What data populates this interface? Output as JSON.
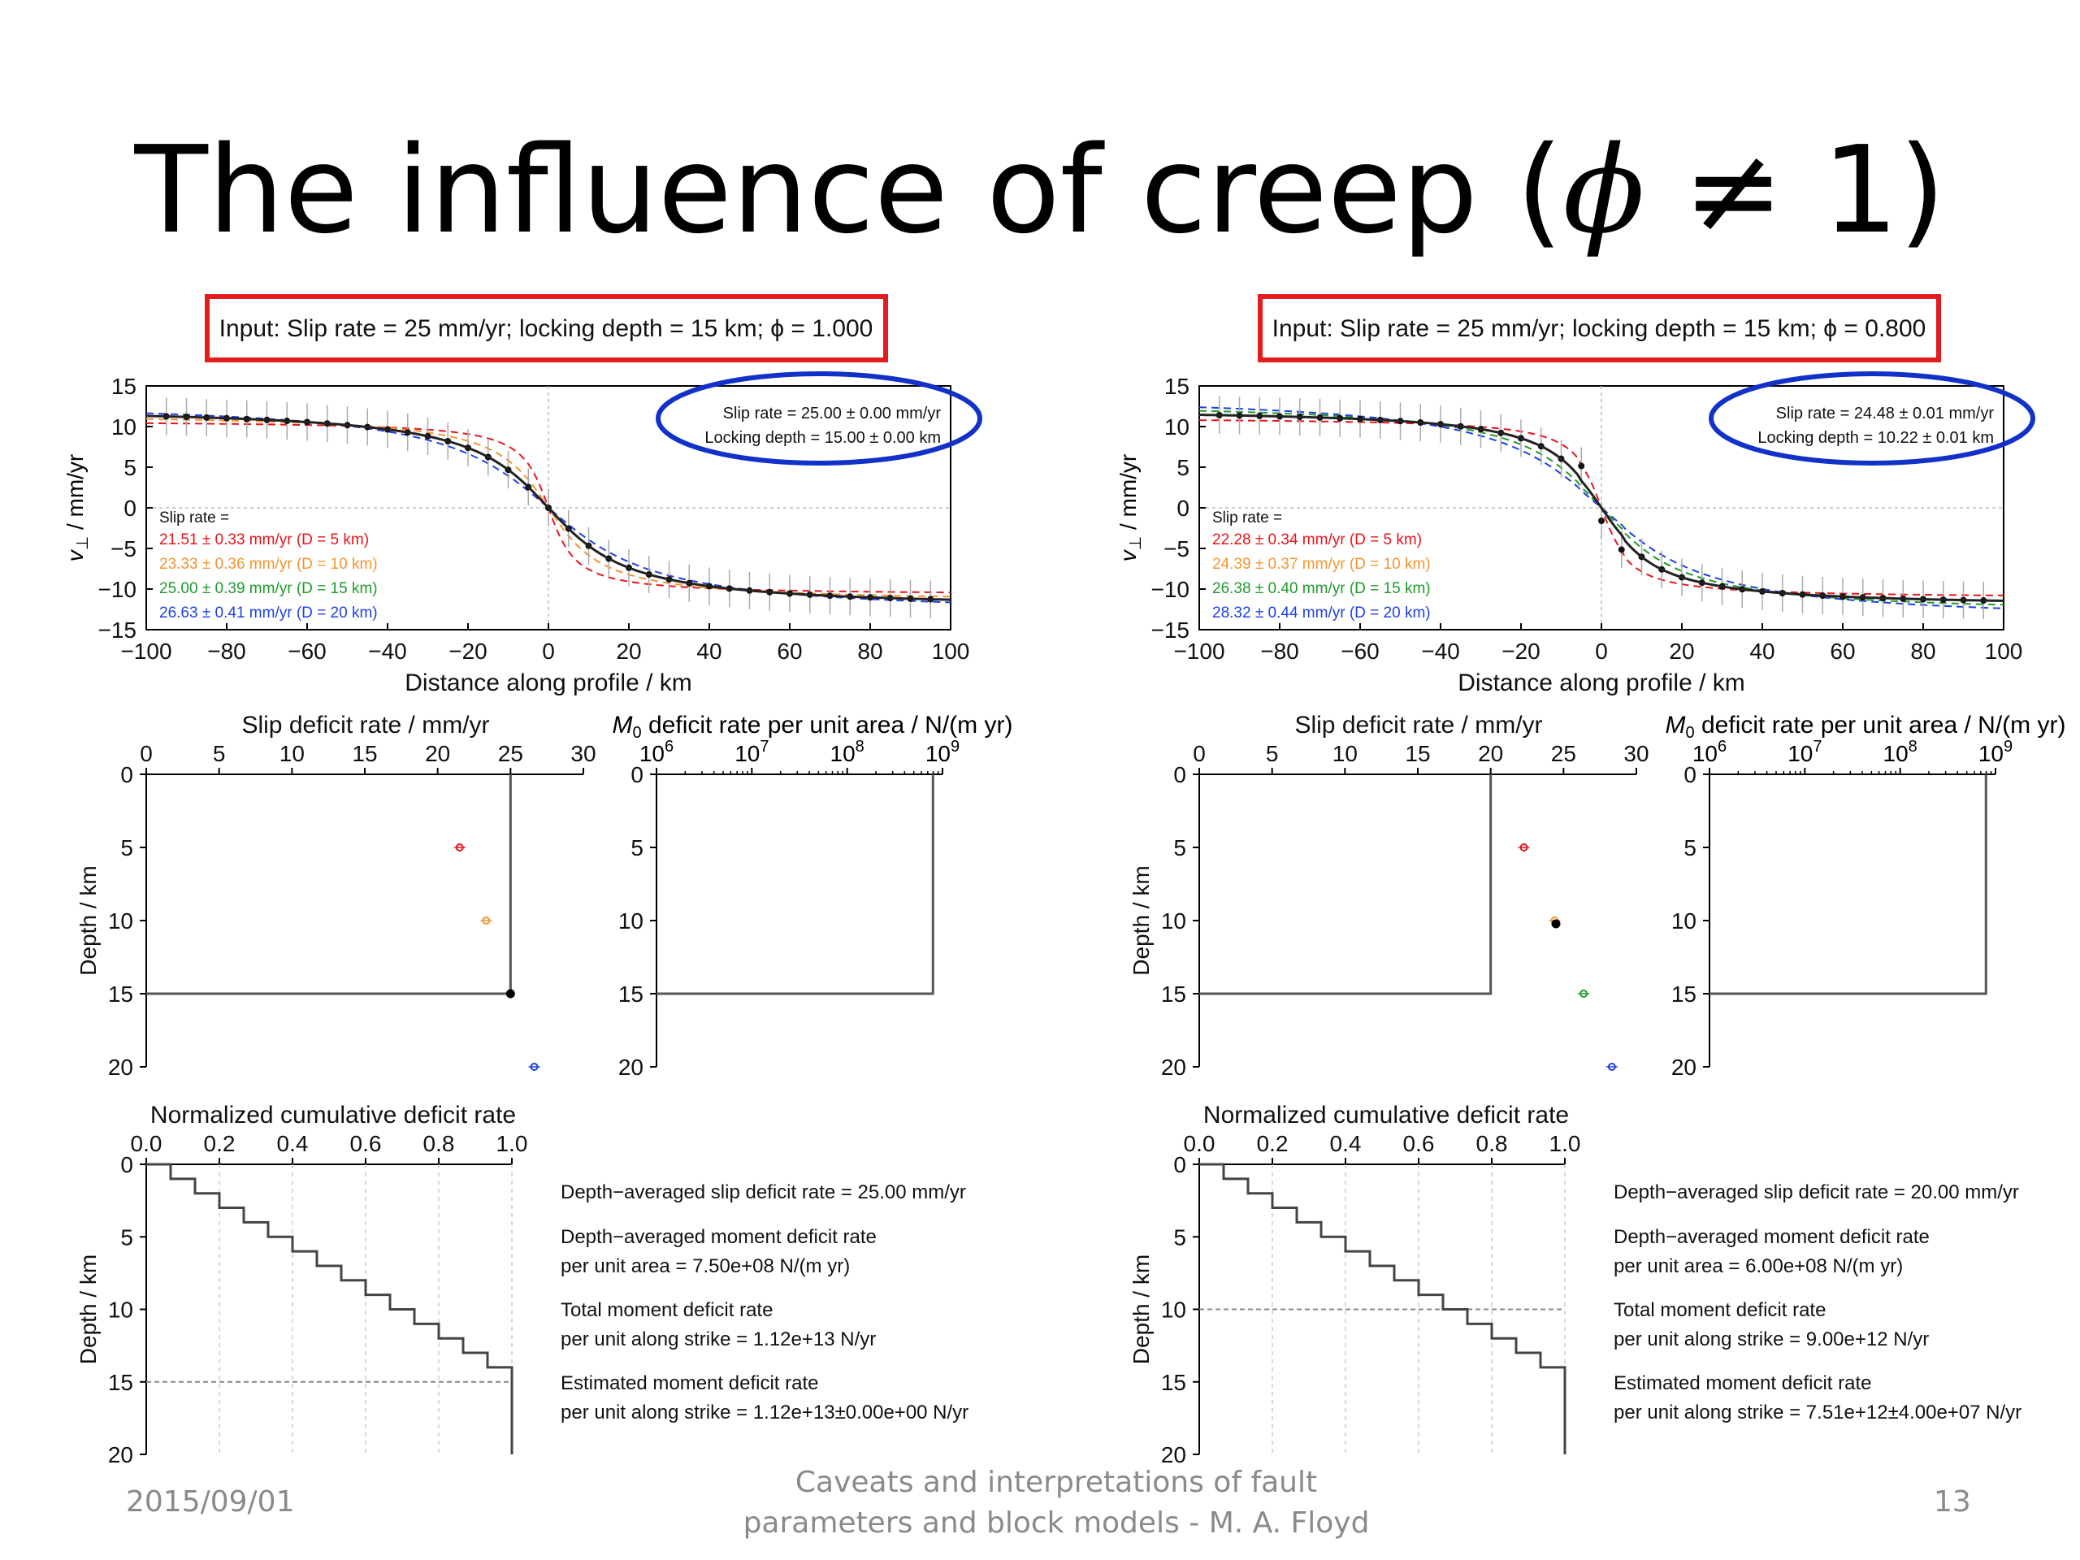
{
  "slide": {
    "title_text": "The influence of creep (",
    "title_phi": "ϕ",
    "title_rest": " ≠ 1)",
    "footer_date": "2015/09/01",
    "footer_center_line1": "Caveats and interpretations of fault",
    "footer_center_line2": "parameters and block models - M. A. Floyd",
    "footer_page": "13"
  },
  "colors": {
    "red": "#e8141b",
    "orange": "#f39530",
    "green": "#1f9a2c",
    "blue": "#1f3fe6",
    "highlight_box": "#e41a1c",
    "highlight_ellipse": "#1131c9"
  },
  "panels": [
    {
      "input_text": "Input: Slip rate = 25 mm/yr; locking depth = 15 km; ϕ = 1.000",
      "fit_line1": "Slip rate = 25.00 ± 0.00 mm/yr",
      "fit_line2": "Locking depth = 15.00 ± 0.00 km",
      "legend_title": "Slip rate =",
      "legend": [
        "21.51 ± 0.33 mm/yr (D = 5 km)",
        "23.33 ± 0.36 mm/yr (D = 10 km)",
        "25.00 ± 0.39 mm/yr (D = 15 km)",
        "26.63 ± 0.41 mm/yr (D = 20 km)"
      ],
      "profile_slip": 25,
      "profile_depth": 15,
      "creep": false,
      "slip_deficit_points": [
        {
          "slip": 21.51,
          "depth": 5,
          "color": "red"
        },
        {
          "slip": 23.33,
          "depth": 10,
          "color": "orange"
        },
        {
          "slip": 25.0,
          "depth": 15,
          "color": "black"
        },
        {
          "slip": 26.63,
          "depth": 20,
          "color": "blue"
        }
      ],
      "slip_profile_x": 25,
      "slip_profile_depth": 15,
      "cumulative_dashed_depth": 15,
      "stats": [
        [
          "Depth−averaged slip deficit rate = 25.00 mm/yr"
        ],
        [
          "Depth−averaged moment deficit rate",
          "per unit area = 7.50e+08 N/(m yr)"
        ],
        [
          "Total moment deficit rate",
          "per unit along strike = 1.12e+13 N/yr"
        ],
        [
          "Estimated moment deficit rate",
          "per unit along strike = 1.12e+13±0.00e+00 N/yr"
        ]
      ]
    },
    {
      "input_text": "Input: Slip rate = 25 mm/yr; locking depth = 15 km; ϕ = 0.800",
      "fit_line1": "Slip rate = 24.48 ± 0.01 mm/yr",
      "fit_line2": "Locking depth = 10.22 ± 0.01 km",
      "legend_title": "Slip rate =",
      "legend": [
        "22.28 ± 0.34 mm/yr (D = 5 km)",
        "24.39 ± 0.37 mm/yr (D = 10 km)",
        "26.38 ± 0.40 mm/yr (D = 15 km)",
        "28.32 ± 0.44 mm/yr (D = 20 km)"
      ],
      "profile_slip": 24.48,
      "profile_depth": 10.22,
      "creep": true,
      "slip_deficit_points": [
        {
          "slip": 22.28,
          "depth": 5,
          "color": "red"
        },
        {
          "slip": 24.39,
          "depth": 10,
          "color": "orange"
        },
        {
          "slip": 24.48,
          "depth": 10.22,
          "color": "black"
        },
        {
          "slip": 26.38,
          "depth": 15,
          "color": "green"
        },
        {
          "slip": 28.32,
          "depth": 20,
          "color": "blue"
        }
      ],
      "slip_profile_x": 20,
      "slip_profile_depth": 15,
      "cumulative_dashed_depth": 10,
      "stats": [
        [
          "Depth−averaged slip deficit rate = 20.00 mm/yr"
        ],
        [
          "Depth−averaged moment deficit rate",
          "per unit area = 6.00e+08 N/(m yr)"
        ],
        [
          "Total moment deficit rate",
          "per unit along strike = 9.00e+12 N/yr"
        ],
        [
          "Estimated moment deficit rate",
          "per unit along strike = 7.51e+12±4.00e+07 N/yr"
        ]
      ]
    }
  ],
  "axes": {
    "profile_xlabel": "Distance along profile / km",
    "profile_ylabel_v": "v",
    "profile_ylabel_sub": "⊥",
    "profile_ylabel_rest": " / mm/yr",
    "profile_xticks": [
      -100,
      -80,
      -60,
      -40,
      -20,
      0,
      20,
      40,
      60,
      80,
      100
    ],
    "profile_yticks": [
      15,
      10,
      5,
      0,
      -5,
      -10,
      -15
    ],
    "slip_deficit_title": "Slip deficit rate / mm/yr",
    "slip_deficit_ticks": [
      0,
      5,
      10,
      15,
      20,
      25,
      30
    ],
    "moment_title_m": "M",
    "moment_title_sub": "0",
    "moment_title_rest": " deficit rate per unit area / N/(m yr)",
    "moment_tick_base": "10",
    "moment_tick_exps": [
      "6",
      "7",
      "8",
      "9"
    ],
    "depth_label": "Depth / km",
    "depth_ticks": [
      0,
      5,
      10,
      15,
      20
    ],
    "cumulative_title": "Normalized cumulative deficit rate",
    "cumulative_ticks": [
      "0.0",
      "0.2",
      "0.4",
      "0.6",
      "0.8",
      "1.0"
    ]
  },
  "chart_data": [
    {
      "type": "scatter",
      "name": "velocity-profile-phi-1.000",
      "xlabel": "Distance along profile / km",
      "ylabel": "v⊥ / mm/yr",
      "xlim": [
        -100,
        100
      ],
      "ylim": [
        -15,
        15
      ],
      "best_fit": {
        "slip_rate": 25.0,
        "locking_depth": 15.0
      }
    },
    {
      "type": "scatter",
      "name": "velocity-profile-phi-0.800",
      "xlabel": "Distance along profile / km",
      "ylabel": "v⊥ / mm/yr",
      "xlim": [
        -100,
        100
      ],
      "ylim": [
        -15,
        15
      ],
      "best_fit": {
        "slip_rate": 24.48,
        "locking_depth": 10.22
      }
    }
  ]
}
